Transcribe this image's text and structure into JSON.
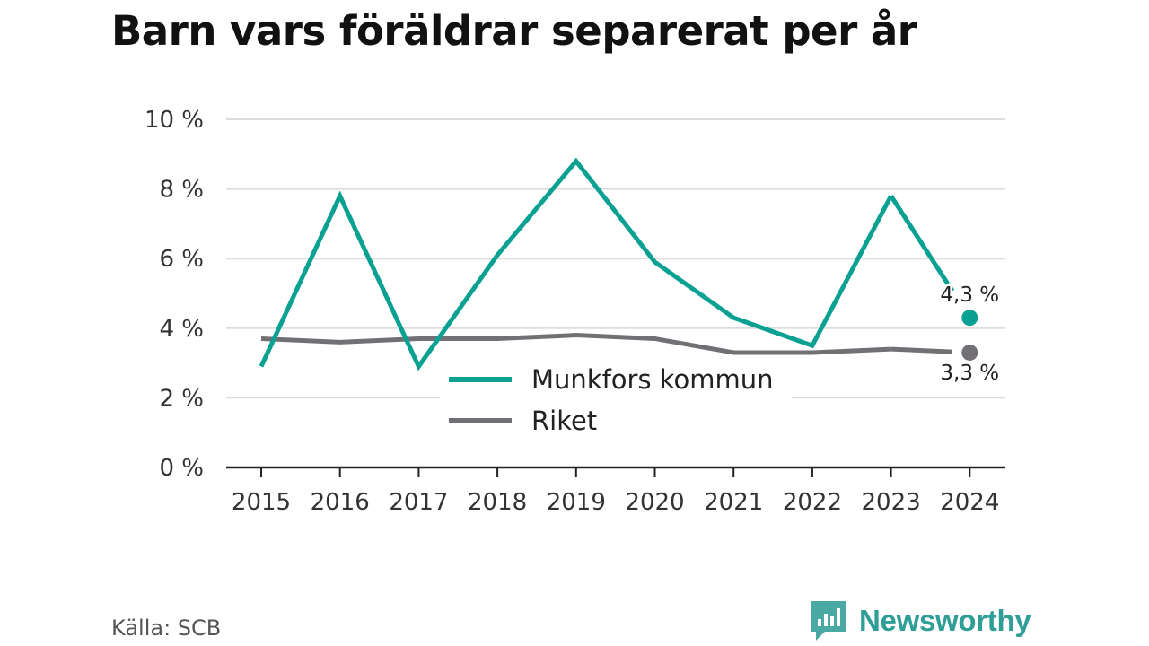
{
  "chart_data": {
    "type": "line",
    "title": "Barn vars föräldrar separerat per år",
    "x": [
      "2015",
      "2016",
      "2017",
      "2018",
      "2019",
      "2020",
      "2021",
      "2022",
      "2023",
      "2024"
    ],
    "ylim": [
      0,
      10
    ],
    "yticks": [
      0,
      2,
      4,
      6,
      8,
      10
    ],
    "ytick_labels": [
      "0 %",
      "2 %",
      "4 %",
      "6 %",
      "8 %",
      "10 %"
    ],
    "grid": true,
    "legend_position": "center",
    "series": [
      {
        "name": "Munkfors kommun",
        "color": "#0aa193",
        "values": [
          2.9,
          7.8,
          2.9,
          6.1,
          8.8,
          5.9,
          4.3,
          3.5,
          7.8,
          4.3
        ],
        "end_label": "4,3 %"
      },
      {
        "name": "Riket",
        "color": "#727075",
        "values": [
          3.7,
          3.6,
          3.7,
          3.7,
          3.8,
          3.7,
          3.3,
          3.3,
          3.4,
          3.3
        ],
        "end_label": "3,3 %"
      }
    ]
  },
  "footer": {
    "source": "Källa: SCB",
    "brand": "Newsworthy"
  }
}
